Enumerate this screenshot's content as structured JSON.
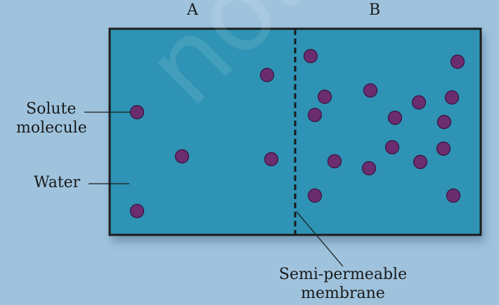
{
  "labels": {
    "side_a": "A",
    "side_b": "B",
    "solute": [
      "Solute",
      "molecule"
    ],
    "water": "Water",
    "membrane": [
      "Semi-permeable",
      "membrane"
    ]
  },
  "watermark": "not to",
  "colors": {
    "background": "#9fc3dd",
    "water": "#2d93b4",
    "molecule": "#6b2d6f",
    "border": "#1a1a1a"
  }
}
